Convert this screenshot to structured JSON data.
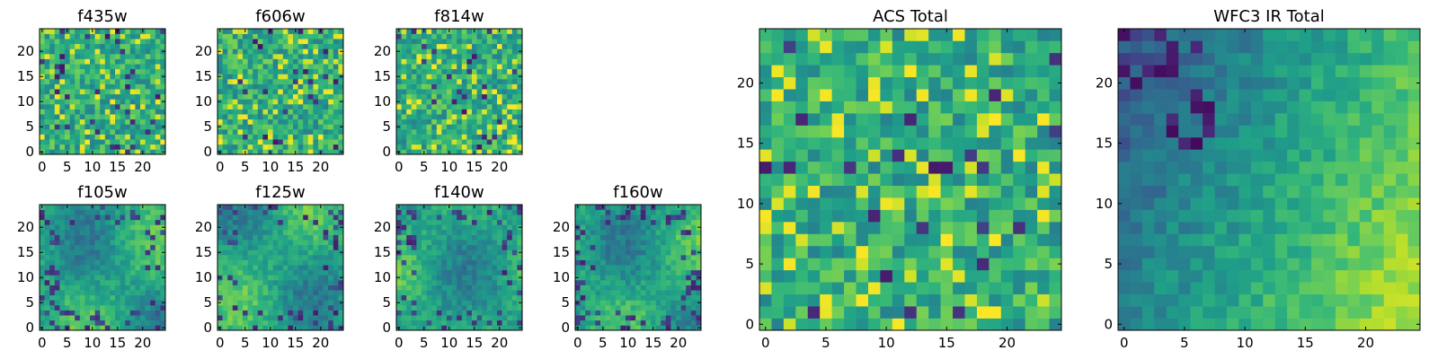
{
  "colormap": "viridis",
  "chart_data": [
    {
      "type": "heatmap",
      "title": "f435w",
      "grid": [
        25,
        25
      ],
      "xticks": [
        "0",
        "5",
        "10",
        "15",
        "20"
      ],
      "yticks": [
        "0",
        "5",
        "10",
        "15",
        "20"
      ],
      "xlim": [
        -0.5,
        24.5
      ],
      "ylim": [
        -0.5,
        24.5
      ],
      "pattern": "noise"
    },
    {
      "type": "heatmap",
      "title": "f606w",
      "grid": [
        25,
        25
      ],
      "xticks": [
        "0",
        "5",
        "10",
        "15",
        "20"
      ],
      "yticks": [
        "0",
        "5",
        "10",
        "15",
        "20"
      ],
      "xlim": [
        -0.5,
        24.5
      ],
      "ylim": [
        -0.5,
        24.5
      ],
      "pattern": "noise"
    },
    {
      "type": "heatmap",
      "title": "f814w",
      "grid": [
        25,
        25
      ],
      "xticks": [
        "0",
        "5",
        "10",
        "15",
        "20"
      ],
      "yticks": [
        "0",
        "5",
        "10",
        "15",
        "20"
      ],
      "xlim": [
        -0.5,
        24.5
      ],
      "ylim": [
        -0.5,
        24.5
      ],
      "pattern": "noise"
    },
    {
      "type": "heatmap",
      "title": "f105w",
      "grid": [
        25,
        25
      ],
      "xticks": [
        "0",
        "5",
        "10",
        "15",
        "20"
      ],
      "yticks": [
        "0",
        "5",
        "10",
        "15",
        "20"
      ],
      "xlim": [
        -0.5,
        24.5
      ],
      "ylim": [
        -0.5,
        24.5
      ],
      "pattern": "smooth"
    },
    {
      "type": "heatmap",
      "title": "f125w",
      "grid": [
        25,
        25
      ],
      "xticks": [
        "0",
        "5",
        "10",
        "15",
        "20"
      ],
      "yticks": [
        "0",
        "5",
        "10",
        "15",
        "20"
      ],
      "xlim": [
        -0.5,
        24.5
      ],
      "ylim": [
        -0.5,
        24.5
      ],
      "pattern": "smooth"
    },
    {
      "type": "heatmap",
      "title": "f140w",
      "grid": [
        25,
        25
      ],
      "xticks": [
        "0",
        "5",
        "10",
        "15",
        "20"
      ],
      "yticks": [
        "0",
        "5",
        "10",
        "15",
        "20"
      ],
      "xlim": [
        -0.5,
        24.5
      ],
      "ylim": [
        -0.5,
        24.5
      ],
      "pattern": "smooth"
    },
    {
      "type": "heatmap",
      "title": "f160w",
      "grid": [
        25,
        25
      ],
      "xticks": [
        "0",
        "5",
        "10",
        "15",
        "20"
      ],
      "yticks": [
        "0",
        "5",
        "10",
        "15",
        "20"
      ],
      "xlim": [
        -0.5,
        24.5
      ],
      "ylim": [
        -0.5,
        24.5
      ],
      "pattern": "smooth"
    },
    {
      "type": "heatmap",
      "title": "ACS Total",
      "grid": [
        25,
        25
      ],
      "xticks": [
        "0",
        "5",
        "10",
        "15",
        "20"
      ],
      "yticks": [
        "0",
        "5",
        "10",
        "15",
        "20"
      ],
      "xlim": [
        -0.5,
        24.5
      ],
      "ylim": [
        -0.5,
        24.5
      ],
      "pattern": "noise"
    },
    {
      "type": "heatmap",
      "title": "WFC3 IR Total",
      "grid": [
        25,
        25
      ],
      "xticks": [
        "0",
        "5",
        "10",
        "15",
        "20"
      ],
      "yticks": [
        "0",
        "5",
        "10",
        "15",
        "20"
      ],
      "xlim": [
        -0.5,
        24.5
      ],
      "ylim": [
        -0.5,
        24.5
      ],
      "pattern": "gradient"
    }
  ]
}
